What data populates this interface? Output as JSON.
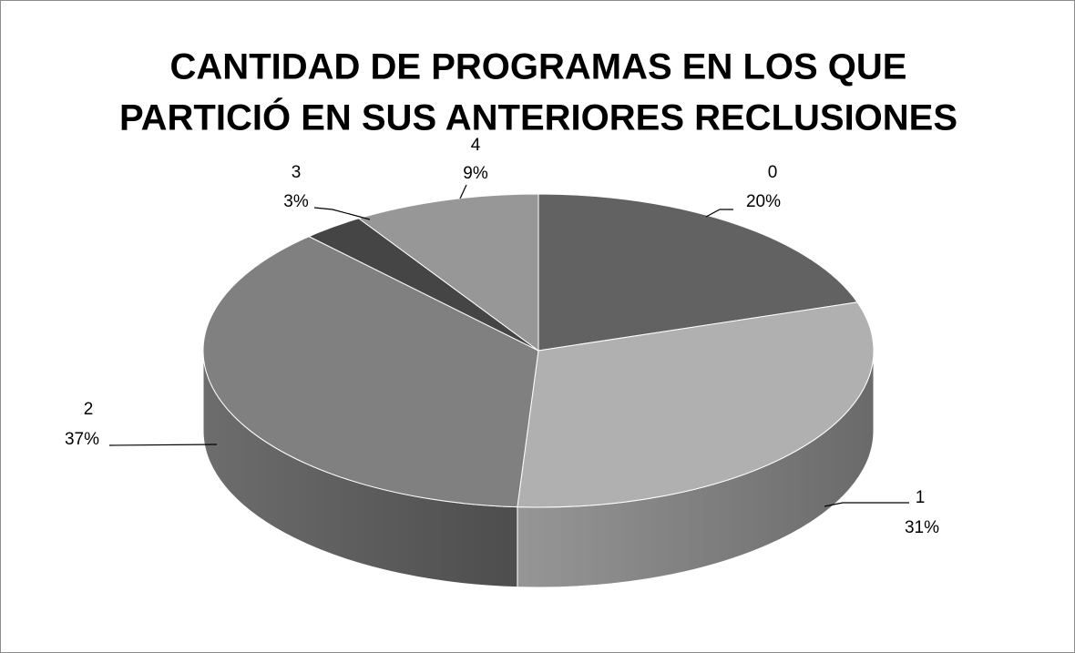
{
  "chart_data": {
    "type": "pie3d",
    "title": [
      "CANTIDAD DE PROGRAMAS EN LOS QUE",
      "PARTICIÓ EN SUS ANTERIORES RECLUSIONES"
    ],
    "categories": [
      "0",
      "1",
      "2",
      "3",
      "4"
    ],
    "values": [
      20,
      31,
      37,
      3,
      9
    ],
    "value_labels": [
      "20%",
      "31%",
      "37%",
      "3%",
      "9%"
    ],
    "colors": [
      "#626262",
      "#b0b0b0",
      "#808080",
      "#454545",
      "#979797"
    ]
  }
}
